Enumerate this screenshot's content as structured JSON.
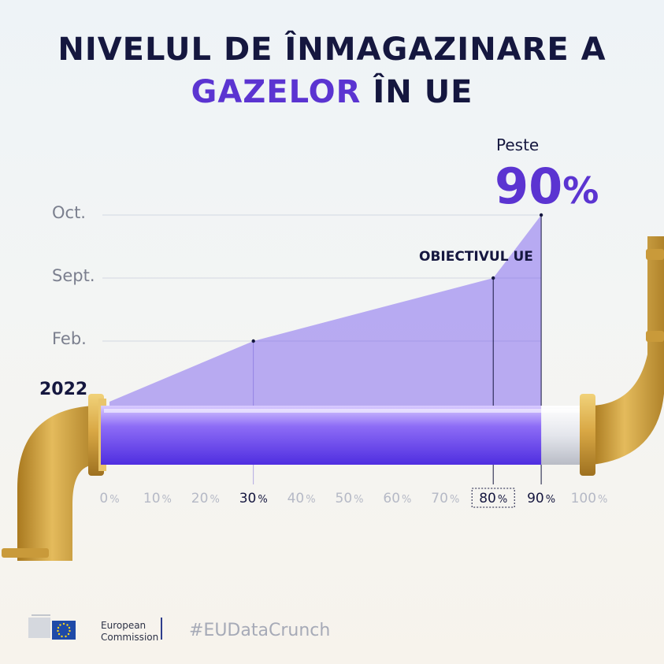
{
  "title": {
    "line1": "NIVELUL DE ÎNMAGAZINARE A",
    "line2_highlight": "GAZELOR",
    "line2_rest": " ÎN UE"
  },
  "colors": {
    "dark": "#15173f",
    "purple": "#5b34d1",
    "fill": "#7a5cf0",
    "pipe_gold": "#d6a640"
  },
  "chart_data": {
    "type": "area",
    "year_label": "2022",
    "x_ticks": [
      0,
      10,
      20,
      30,
      40,
      50,
      60,
      70,
      80,
      90,
      100
    ],
    "x_unit": "%",
    "highlighted_ticks": [
      30,
      80,
      90
    ],
    "boxed_tick": 80,
    "y_labels": [
      "Feb.",
      "Sept.",
      "Oct."
    ],
    "points": [
      {
        "label": "2022",
        "x": 0
      },
      {
        "label": "Feb.",
        "x": 30
      },
      {
        "label": "Sept.",
        "x": 80
      },
      {
        "label": "Oct.",
        "x": 90
      }
    ],
    "current_level": 90,
    "target_label": "OBIECTIVUL UE",
    "target_value": 80,
    "callout": {
      "prefix": "Peste",
      "value": "90",
      "unit": "%"
    }
  },
  "footer": {
    "org_line1": "European",
    "org_line2": "Commission",
    "hashtag": "#EUDataCrunch"
  }
}
